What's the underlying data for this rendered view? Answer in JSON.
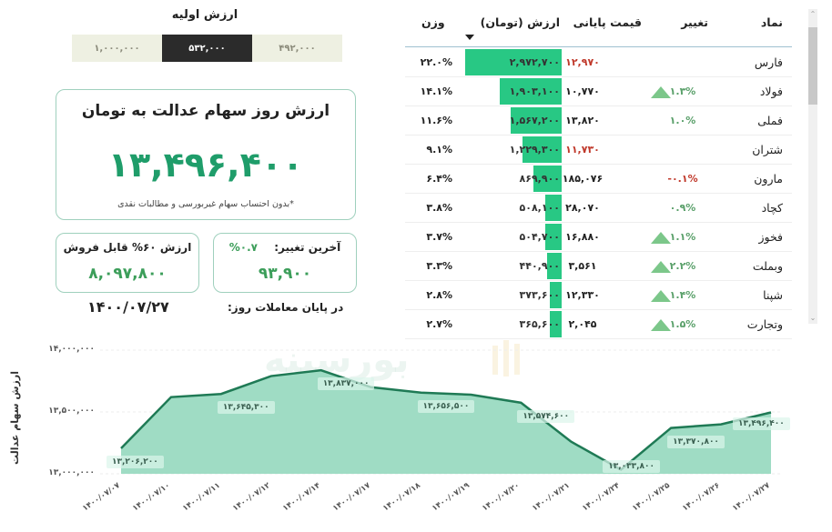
{
  "initial_value": {
    "title": "ارزش اولیه",
    "options": [
      {
        "label": "۱,۰۰۰,۰۰۰",
        "active": false
      },
      {
        "label": "۵۳۲,۰۰۰",
        "active": true
      },
      {
        "label": "۴۹۲,۰۰۰",
        "active": false
      }
    ]
  },
  "main_card": {
    "title": "ارزش روز سهام عدالت به تومان",
    "value": "۱۳,۴۹۶,۴۰۰",
    "note": "*بدون احتساب سهام غیربورسی و مطالبات نقدی"
  },
  "sellable_card": {
    "title": "ارزش ۶۰% قابل فروش",
    "value": "۸,۰۹۷,۸۰۰"
  },
  "change_card": {
    "title": "آخرین تغییر:",
    "percent": "۰.۷%",
    "value": "۹۳,۹۰۰"
  },
  "end_of_day": {
    "label": "در پایان معاملات روز:",
    "date": "۱۴۰۰/۰۷/۲۷"
  },
  "table": {
    "headers": {
      "symbol": "نماد",
      "change": "تغییر",
      "close_price": "قیمت پایانی",
      "value": "ارزش (تومان)",
      "weight": "وزن"
    },
    "sorted_by": "value",
    "rows": [
      {
        "symbol": "فارس",
        "change": "",
        "change_dir": "none",
        "up_arrow": false,
        "price": "۱۲,۹۷۰",
        "price_neg": true,
        "value": "۲,۹۷۲,۷۰۰",
        "bar_pct": 100,
        "weight": "۲۲.۰%"
      },
      {
        "symbol": "فولاد",
        "change": "۱.۳%",
        "change_dir": "up",
        "up_arrow": true,
        "price": "۱۰,۷۷۰",
        "price_neg": false,
        "value": "۱,۹۰۳,۱۰۰",
        "bar_pct": 64,
        "weight": "۱۴.۱%"
      },
      {
        "symbol": "فملی",
        "change": "۱.۰%",
        "change_dir": "up",
        "up_arrow": false,
        "price": "۱۳,۸۲۰",
        "price_neg": false,
        "value": "۱,۵۶۷,۲۰۰",
        "bar_pct": 53,
        "weight": "۱۱.۶%"
      },
      {
        "symbol": "شتران",
        "change": "",
        "change_dir": "none",
        "up_arrow": false,
        "price": "۱۱,۷۳۰",
        "price_neg": true,
        "value": "۱,۲۲۹,۳۰۰",
        "bar_pct": 41,
        "weight": "۹.۱%"
      },
      {
        "symbol": "مارون",
        "change": "-۰.۱%",
        "change_dir": "down",
        "up_arrow": false,
        "price": "۱۸۵,۰۷۶",
        "price_neg": false,
        "value": "۸۶۹,۹۰۰",
        "bar_pct": 29,
        "weight": "۶.۴%"
      },
      {
        "symbol": "کچاد",
        "change": "۰.۹%",
        "change_dir": "up",
        "up_arrow": false,
        "price": "۲۸,۰۷۰",
        "price_neg": false,
        "value": "۵۰۸,۱۰۰",
        "bar_pct": 17,
        "weight": "۳.۸%"
      },
      {
        "symbol": "فخوز",
        "change": "۱.۱%",
        "change_dir": "up",
        "up_arrow": true,
        "price": "۱۶,۸۸۰",
        "price_neg": false,
        "value": "۵۰۴,۷۰۰",
        "bar_pct": 17,
        "weight": "۳.۷%"
      },
      {
        "symbol": "وبملت",
        "change": "۲.۲%",
        "change_dir": "up",
        "up_arrow": true,
        "price": "۳,۵۶۱",
        "price_neg": false,
        "value": "۴۴۰,۹۰۰",
        "bar_pct": 15,
        "weight": "۳.۳%"
      },
      {
        "symbol": "شپنا",
        "change": "۱.۴%",
        "change_dir": "up",
        "up_arrow": true,
        "price": "۱۲,۳۳۰",
        "price_neg": false,
        "value": "۳۷۳,۶۰۰",
        "bar_pct": 12.5,
        "weight": "۲.۸%"
      },
      {
        "symbol": "وتجارت",
        "change": "۱.۵%",
        "change_dir": "up",
        "up_arrow": true,
        "price": "۲,۰۴۵",
        "price_neg": false,
        "value": "۳۶۵,۶۰۰",
        "bar_pct": 12.3,
        "weight": "۲.۷%"
      }
    ]
  },
  "colors": {
    "accent_green": "#1f9d6a",
    "bar_green": "#28c884",
    "positive": "#5aa06a",
    "negative": "#c0392b",
    "area_fill": "#9fdcc4",
    "line": "#1f7a55"
  },
  "chart_data": {
    "type": "area",
    "title": "",
    "ylabel": "ارزش سهام عدالت",
    "xlabel": "",
    "ylim": [
      13000000,
      14000000
    ],
    "y_ticks": [
      "۱۳,۰۰۰,۰۰۰",
      "۱۳,۵۰۰,۰۰۰",
      "۱۴,۰۰۰,۰۰۰"
    ],
    "categories": [
      "۱۴۰۰/۰۷/۰۷",
      "۱۴۰۰/۰۷/۱۰",
      "۱۴۰۰/۰۷/۱۱",
      "۱۴۰۰/۰۷/۱۲",
      "۱۴۰۰/۰۷/۱۴",
      "۱۴۰۰/۰۷/۱۷",
      "۱۴۰۰/۰۷/۱۸",
      "۱۴۰۰/۰۷/۱۹",
      "۱۴۰۰/۰۷/۲۰",
      "۱۴۰۰/۰۷/۲۱",
      "۱۴۰۰/۰۷/۲۴",
      "۱۴۰۰/۰۷/۲۵",
      "۱۴۰۰/۰۷/۲۶",
      "۱۴۰۰/۰۷/۲۷"
    ],
    "values": [
      13206200,
      13620000,
      13645300,
      13790000,
      13837000,
      13700000,
      13656500,
      13640000,
      13574600,
      13260000,
      13033800,
      13370800,
      13400000,
      13496400
    ],
    "labels": [
      {
        "index": 0,
        "text": "۱۳,۲۰۶,۲۰۰"
      },
      {
        "index": 2,
        "text": "۱۳,۶۴۵,۳۰۰"
      },
      {
        "index": 4,
        "text": "۱۳,۸۳۷,۰۰۰"
      },
      {
        "index": 6,
        "text": "۱۳,۶۵۶,۵۰۰"
      },
      {
        "index": 8,
        "text": "۱۳,۵۷۴,۶۰۰"
      },
      {
        "index": 10,
        "text": "۱۳,۰۳۳,۸۰۰"
      },
      {
        "index": 11,
        "text": "۱۳,۳۷۰,۸۰۰"
      },
      {
        "index": 13,
        "text": "۱۳,۴۹۶,۴۰۰"
      }
    ],
    "grid": true,
    "legend": "none"
  }
}
